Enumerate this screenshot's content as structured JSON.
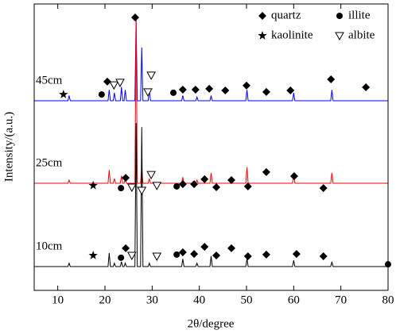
{
  "chart_data": {
    "type": "line",
    "xlabel": "2θ/degree",
    "ylabel": "Intensity/(a.u.)",
    "xlim": [
      5,
      80
    ],
    "xticks": [
      10,
      20,
      30,
      40,
      50,
      60,
      70,
      80
    ],
    "ylim": [
      0,
      100
    ],
    "x": [
      5,
      12.15,
      12.4,
      12.65,
      20.65,
      20.9,
      21.15,
      21.75,
      22.0,
      22.25,
      23.25,
      23.5,
      23.75,
      24.05,
      24.3,
      24.55,
      26.35,
      26.6,
      26.85,
      27.55,
      27.8,
      28.05,
      29.15,
      29.4,
      29.65,
      36.25,
      36.5,
      36.75,
      39.25,
      39.5,
      39.75,
      42.25,
      42.5,
      42.75,
      49.85,
      50.1,
      50.35,
      59.75,
      60.0,
      60.25,
      67.85,
      68.1,
      68.35,
      80
    ],
    "series": [
      {
        "name": "45cm",
        "color": "#0000ff",
        "values": [
          66.2,
          66.2,
          68,
          66.2,
          66.2,
          70,
          66.2,
          66.2,
          69,
          66.2,
          66.2,
          71,
          66.2,
          66.2,
          70,
          66.2,
          66.2,
          95,
          66.2,
          66.2,
          84.8,
          66.2,
          66.2,
          70,
          66.2,
          66.2,
          68,
          66.2,
          66.2,
          67.5,
          66.2,
          66.2,
          68,
          66.2,
          66.2,
          70,
          66.2,
          66.2,
          69,
          66.2,
          66.2,
          70,
          66.2,
          66.2
        ]
      },
      {
        "name": "25cm",
        "color": "#ff0000",
        "values": [
          37.4,
          37.4,
          38.5,
          37.4,
          37.4,
          42,
          37.4,
          37.4,
          39,
          37.4,
          37.4,
          40,
          37.4,
          37.4,
          39,
          37.4,
          37.4,
          95.3,
          37.4,
          37.4,
          43,
          37.4,
          37.4,
          39,
          37.4,
          37.4,
          39.5,
          37.4,
          37.4,
          38.5,
          37.4,
          37.4,
          41,
          37.4,
          37.4,
          43,
          37.4,
          37.4,
          41,
          37.4,
          37.4,
          41,
          37.4,
          37.4
        ]
      },
      {
        "name": "10cm",
        "color": "#000000",
        "values": [
          8.3,
          8.3,
          9.5,
          8.3,
          8.3,
          13,
          8.3,
          8.3,
          9.5,
          8.3,
          8.3,
          10,
          8.3,
          8.3,
          9.5,
          8.3,
          8.3,
          58.4,
          8.3,
          8.3,
          57,
          8.3,
          8.3,
          9.5,
          8.3,
          8.3,
          11,
          8.3,
          8.3,
          9.5,
          8.3,
          8.3,
          12,
          8.3,
          8.3,
          11,
          8.3,
          8.3,
          10.5,
          8.3,
          8.3,
          10,
          8.3,
          8.3
        ]
      }
    ],
    "phases": [
      {
        "name": "quartz",
        "symbol": "diamond",
        "points": [
          [
            20.5,
            72.9
          ],
          [
            26.4,
            95.3
          ],
          [
            36.5,
            70.1
          ],
          [
            39.2,
            70.1
          ],
          [
            42.1,
            70.4
          ],
          [
            45.5,
            69.8
          ],
          [
            50,
            71.5
          ],
          [
            54.2,
            69.3
          ],
          [
            59.3,
            69.8
          ],
          [
            67.9,
            73.7
          ],
          [
            75.3,
            70.9
          ],
          [
            24.4,
            39.3
          ],
          [
            36.5,
            37.1
          ],
          [
            38.9,
            37.1
          ],
          [
            41.1,
            38.8
          ],
          [
            43.6,
            36
          ],
          [
            46.8,
            38.5
          ],
          [
            50.3,
            36.3
          ],
          [
            54.2,
            41.3
          ],
          [
            60.1,
            39.9
          ],
          [
            66.3,
            35.7
          ],
          [
            24.4,
            14.7
          ],
          [
            36.5,
            13.3
          ],
          [
            38.9,
            12.7
          ],
          [
            41.1,
            15.2
          ],
          [
            43.6,
            12.2
          ],
          [
            46.8,
            14.7
          ],
          [
            50.3,
            11.9
          ],
          [
            54.2,
            12.5
          ],
          [
            60.6,
            12.7
          ],
          [
            66.3,
            11.9
          ]
        ]
      },
      {
        "name": "illite",
        "symbol": "circle",
        "points": [
          [
            19.3,
            68.4
          ],
          [
            34.5,
            69
          ],
          [
            23.4,
            35.7
          ],
          [
            35.2,
            36.3
          ],
          [
            23.4,
            11.4
          ],
          [
            35.2,
            12.5
          ],
          [
            80,
            9.1
          ]
        ]
      },
      {
        "name": "kaolinite",
        "symbol": "star",
        "points": [
          [
            11.2,
            68.4
          ],
          [
            17.5,
            36.6
          ],
          [
            17.5,
            12.2
          ]
        ]
      },
      {
        "name": "albite",
        "symbol": "triangle",
        "points": [
          [
            21.9,
            71.7
          ],
          [
            23.2,
            72.6
          ],
          [
            29.8,
            75.1
          ],
          [
            29.1,
            69.3
          ],
          [
            25.7,
            36
          ],
          [
            27.8,
            34.9
          ],
          [
            29.8,
            40.4
          ],
          [
            31,
            36.6
          ],
          [
            25.7,
            12.2
          ],
          [
            31,
            11.9
          ]
        ]
      }
    ]
  }
}
